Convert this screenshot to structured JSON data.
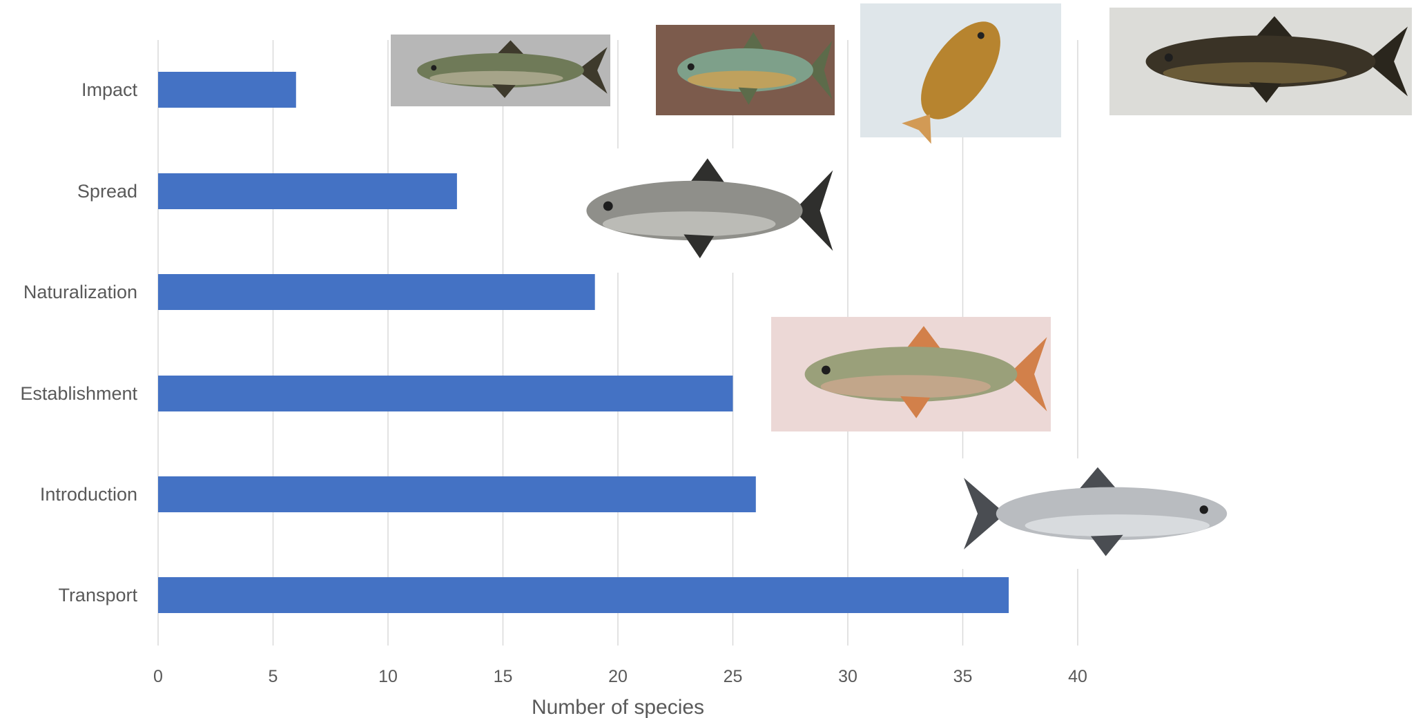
{
  "chart_data": {
    "type": "bar",
    "orientation": "horizontal",
    "categories": [
      "Impact",
      "Spread",
      "Naturalization",
      "Establishment",
      "Introduction",
      "Transport"
    ],
    "values": [
      6,
      13,
      19,
      25,
      26,
      37
    ],
    "xlabel": "Number of species",
    "xlim": [
      0,
      40
    ],
    "xticks": [
      0,
      5,
      10,
      15,
      20,
      25,
      30,
      35,
      40
    ],
    "grid": "vertical",
    "legend": "none",
    "bar_color": "#4472C4"
  },
  "photos": [
    {
      "name": "greenish-minnow-photo",
      "bg": "#b7b7b7",
      "body": "#6f7a58",
      "fin": "#3e3a2c",
      "belly": "#b8b39a"
    },
    {
      "name": "pumpkinseed-sunfish-photo",
      "bg": "#7c5b4c",
      "body": "#7ea08a",
      "fin": "#5c6b4a",
      "belly": "#d6a24e"
    },
    {
      "name": "brown-goby-photo",
      "bg": "#dfe6ea",
      "body": "#b7842f",
      "fin": "#d29a55",
      "belly": "#d9b16a"
    },
    {
      "name": "dark-catfish-photo",
      "bg": "#dcdcd8",
      "body": "#3a3326",
      "fin": "#2a261d",
      "belly": "#7b6a3f"
    },
    {
      "name": "bighead-carp-photo",
      "bg": "#ffffff",
      "body": "#8f8f8a",
      "fin": "#2f2f2d",
      "belly": "#c9c9c4"
    },
    {
      "name": "guppy-photo",
      "bg": "#ecd8d6",
      "body": "#9aa07a",
      "fin": "#d2804a",
      "belly": "#cfa890"
    },
    {
      "name": "whitefish-photo",
      "bg": "#ffffff",
      "body": "#b9bcc0",
      "fin": "#4a4d52",
      "belly": "#e3e5e8"
    }
  ]
}
